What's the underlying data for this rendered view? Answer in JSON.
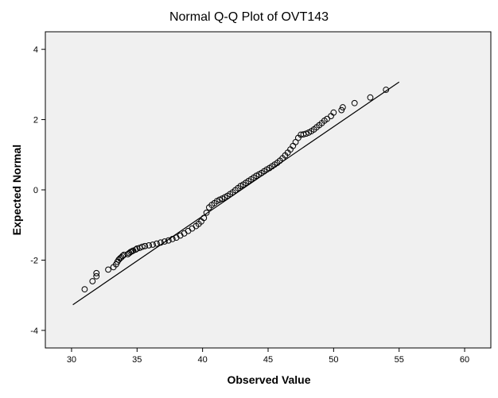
{
  "chart_data": {
    "type": "scatter",
    "title": "Normal Q-Q Plot of OVT143",
    "xlabel": "Observed Value",
    "ylabel": "Expected Normal",
    "xlim": [
      28,
      62
    ],
    "ylim": [
      -4.5,
      4.5
    ],
    "x_ticks": [
      30,
      35,
      40,
      45,
      50,
      55,
      60
    ],
    "y_ticks": [
      -4,
      -2,
      0,
      2,
      4
    ],
    "grid": false,
    "legend": "none",
    "reference_line": {
      "x": [
        30.1,
        55.0
      ],
      "y": [
        -3.27,
        3.07
      ]
    },
    "series": [
      {
        "x": [
          31.0,
          31.6,
          31.9,
          31.9,
          32.8,
          33.2,
          33.4,
          33.5,
          33.6,
          33.7,
          33.8,
          33.9,
          34.0,
          34.3,
          34.4,
          34.5,
          34.6,
          34.7,
          34.9,
          35.0,
          35.2,
          35.4,
          35.6,
          35.9,
          36.2,
          36.5,
          36.8,
          37.1,
          37.4,
          37.7,
          38.0,
          38.3,
          38.6,
          38.9,
          39.2,
          39.5,
          39.7,
          39.9,
          40.1,
          40.3,
          40.5,
          40.7,
          40.9,
          41.1,
          41.3,
          41.5,
          41.7,
          41.9,
          42.1,
          42.3,
          42.5,
          42.7,
          42.9,
          43.1,
          43.3,
          43.5,
          43.7,
          43.9,
          44.1,
          44.3,
          44.5,
          44.7,
          44.9,
          45.1,
          45.3,
          45.5,
          45.7,
          45.9,
          46.1,
          46.3,
          46.5,
          46.7,
          46.9,
          47.1,
          47.3,
          47.5,
          47.7,
          47.9,
          48.1,
          48.3,
          48.5,
          48.7,
          48.9,
          49.1,
          49.3,
          49.5,
          49.8,
          50.0,
          50.6,
          50.7,
          51.6,
          52.8,
          54.0
        ],
        "y": [
          -2.83,
          -2.6,
          -2.46,
          -2.37,
          -2.27,
          -2.2,
          -2.12,
          -2.05,
          -1.99,
          -1.95,
          -1.92,
          -1.88,
          -1.85,
          -1.83,
          -1.8,
          -1.77,
          -1.75,
          -1.73,
          -1.7,
          -1.67,
          -1.65,
          -1.62,
          -1.6,
          -1.58,
          -1.56,
          -1.53,
          -1.5,
          -1.47,
          -1.44,
          -1.4,
          -1.36,
          -1.3,
          -1.24,
          -1.17,
          -1.1,
          -1.03,
          -0.97,
          -0.9,
          -0.8,
          -0.65,
          -0.5,
          -0.43,
          -0.38,
          -0.32,
          -0.28,
          -0.25,
          -0.21,
          -0.17,
          -0.12,
          -0.07,
          -0.01,
          0.05,
          0.11,
          0.15,
          0.2,
          0.25,
          0.3,
          0.35,
          0.4,
          0.44,
          0.48,
          0.53,
          0.58,
          0.62,
          0.67,
          0.72,
          0.77,
          0.83,
          0.9,
          0.98,
          1.06,
          1.15,
          1.25,
          1.36,
          1.48,
          1.57,
          1.58,
          1.6,
          1.63,
          1.67,
          1.72,
          1.78,
          1.84,
          1.9,
          1.97,
          2.02,
          2.1,
          2.2,
          2.27,
          2.35,
          2.47,
          2.63,
          2.85
        ]
      }
    ]
  }
}
